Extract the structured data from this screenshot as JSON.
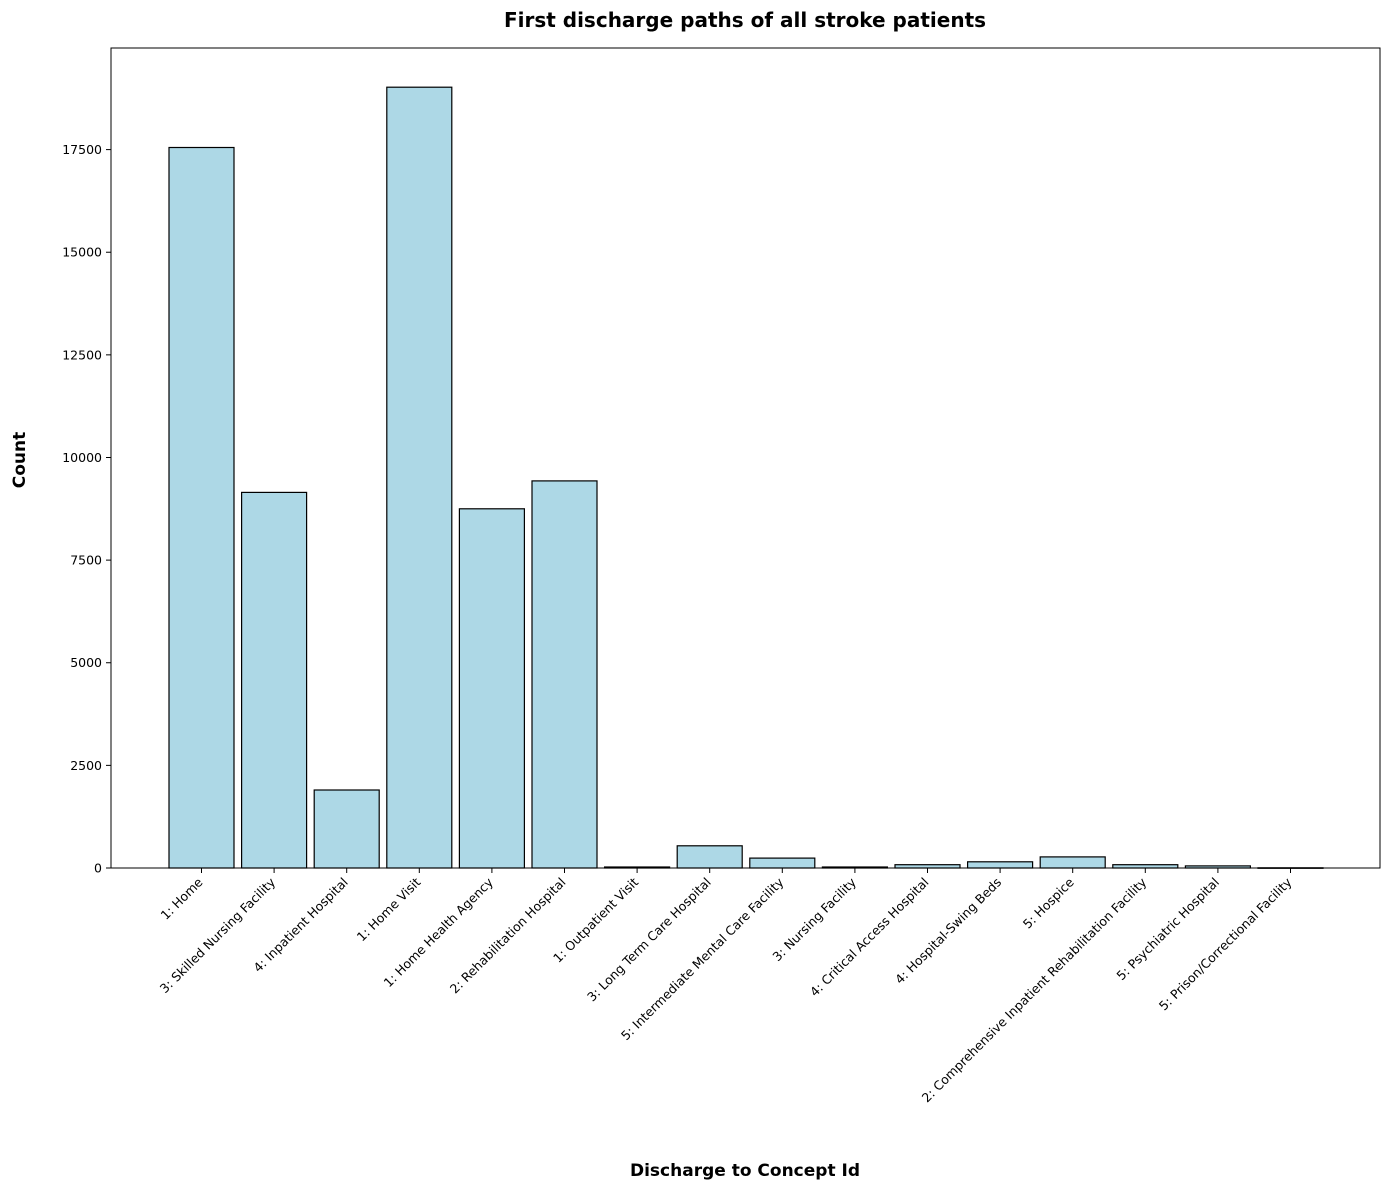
{
  "chart_data": {
    "type": "bar",
    "title": "First discharge paths of all stroke patients",
    "xlabel": "Discharge to Concept Id",
    "ylabel": "Count",
    "categories": [
      "1: Home",
      "3: Skilled Nursing Facility",
      "4: Inpatient Hospital",
      "1: Home Visit",
      "1: Home Health Agency",
      "2: Rehabilitation Hospital",
      "1: Outpatient Visit",
      "3: Long Term Care Hospital",
      "5: Intermediate Mental Care Facility",
      "3: Nursing Facility",
      "4: Critical Access Hospital",
      "4: Hospital-Swing Beds",
      "5: Hospice",
      "2: Comprehensive Inpatient Rehabilitation Facility",
      "5: Psychiatric Hospital",
      "5: Prison/Correctional Facility"
    ],
    "values": [
      17550,
      9150,
      1900,
      19020,
      8750,
      9430,
      25,
      540,
      240,
      25,
      80,
      150,
      270,
      80,
      50,
      5
    ],
    "yticks": [
      0,
      2500,
      5000,
      7500,
      10000,
      12500,
      15000,
      17500
    ],
    "ylim": [
      0,
      19975
    ],
    "bar_color": "#add8e6",
    "edge_color": "#000000",
    "grid": false,
    "legend": "none"
  }
}
